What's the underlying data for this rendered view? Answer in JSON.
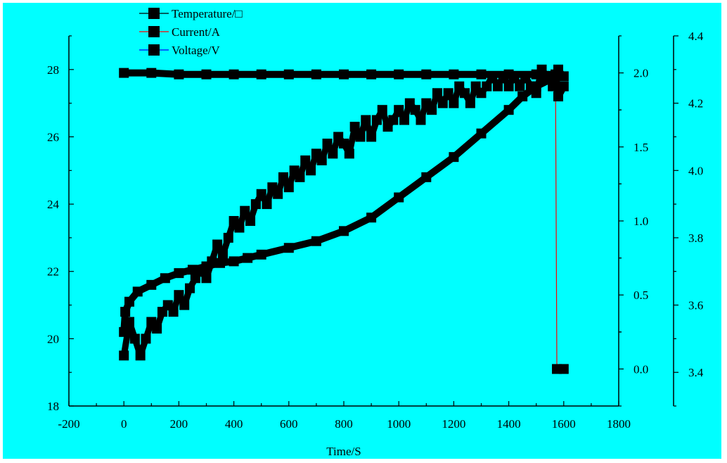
{
  "chart_data": {
    "type": "line",
    "background": "#00FFFF",
    "xlabel": "Time/S",
    "xlim": [
      -200,
      1800
    ],
    "xticks": [
      -200,
      0,
      200,
      400,
      600,
      800,
      1000,
      1200,
      1400,
      1600,
      1800
    ],
    "y_left": {
      "lim": [
        18,
        29
      ],
      "ticks": [
        18,
        20,
        22,
        24,
        26,
        28
      ]
    },
    "y_mid": {
      "lim": [
        -0.25,
        2.25
      ],
      "ticks": [
        0.0,
        0.5,
        1.0,
        1.5,
        2.0
      ]
    },
    "y_right": {
      "lim": [
        3.3,
        4.4
      ],
      "ticks": [
        3.4,
        3.6,
        3.8,
        4.0,
        4.2,
        4.4
      ]
    },
    "legend_position": "top-left",
    "series": [
      {
        "name": "Temperature/□",
        "axis": "left",
        "color": "#000000",
        "marker": "square",
        "points": [
          [
            0,
            19.5
          ],
          [
            20,
            20.5
          ],
          [
            40,
            20.0
          ],
          [
            60,
            19.5
          ],
          [
            80,
            20.0
          ],
          [
            100,
            20.5
          ],
          [
            120,
            20.3
          ],
          [
            140,
            20.8
          ],
          [
            160,
            21.0
          ],
          [
            180,
            20.8
          ],
          [
            200,
            21.3
          ],
          [
            220,
            21.0
          ],
          [
            240,
            21.5
          ],
          [
            260,
            21.8
          ],
          [
            280,
            22.0
          ],
          [
            300,
            21.8
          ],
          [
            320,
            22.3
          ],
          [
            340,
            22.8
          ],
          [
            360,
            22.5
          ],
          [
            380,
            23.0
          ],
          [
            400,
            23.5
          ],
          [
            420,
            23.3
          ],
          [
            440,
            23.8
          ],
          [
            460,
            23.5
          ],
          [
            480,
            24.0
          ],
          [
            500,
            24.3
          ],
          [
            520,
            24.0
          ],
          [
            540,
            24.5
          ],
          [
            560,
            24.3
          ],
          [
            580,
            24.8
          ],
          [
            600,
            24.5
          ],
          [
            620,
            25.0
          ],
          [
            640,
            24.8
          ],
          [
            660,
            25.3
          ],
          [
            680,
            25.0
          ],
          [
            700,
            25.5
          ],
          [
            720,
            25.3
          ],
          [
            740,
            25.8
          ],
          [
            760,
            25.5
          ],
          [
            780,
            26.0
          ],
          [
            800,
            25.8
          ],
          [
            820,
            25.5
          ],
          [
            840,
            26.3
          ],
          [
            860,
            26.0
          ],
          [
            880,
            26.5
          ],
          [
            900,
            26.0
          ],
          [
            920,
            26.5
          ],
          [
            940,
            26.8
          ],
          [
            960,
            26.3
          ],
          [
            980,
            26.5
          ],
          [
            1000,
            26.8
          ],
          [
            1020,
            26.5
          ],
          [
            1040,
            27.0
          ],
          [
            1060,
            26.8
          ],
          [
            1080,
            26.5
          ],
          [
            1100,
            27.0
          ],
          [
            1120,
            26.8
          ],
          [
            1140,
            27.3
          ],
          [
            1160,
            27.0
          ],
          [
            1180,
            27.3
          ],
          [
            1200,
            27.0
          ],
          [
            1220,
            27.5
          ],
          [
            1240,
            27.3
          ],
          [
            1260,
            27.0
          ],
          [
            1280,
            27.5
          ],
          [
            1300,
            27.3
          ],
          [
            1320,
            27.5
          ],
          [
            1340,
            27.8
          ],
          [
            1360,
            27.5
          ],
          [
            1380,
            27.8
          ],
          [
            1400,
            27.5
          ],
          [
            1420,
            27.8
          ],
          [
            1440,
            27.5
          ],
          [
            1460,
            27.8
          ],
          [
            1480,
            27.5
          ],
          [
            1500,
            27.3
          ],
          [
            1520,
            28.0
          ],
          [
            1540,
            27.8
          ],
          [
            1560,
            27.5
          ],
          [
            1580,
            28.0
          ],
          [
            1600,
            27.8
          ]
        ]
      },
      {
        "name": "Current/A",
        "axis": "mid",
        "color": "#FF0000",
        "marker": "square",
        "points": [
          [
            0,
            2.0
          ],
          [
            100,
            2.0
          ],
          [
            200,
            1.99
          ],
          [
            300,
            1.99
          ],
          [
            400,
            1.99
          ],
          [
            500,
            1.99
          ],
          [
            600,
            1.99
          ],
          [
            700,
            1.99
          ],
          [
            800,
            1.99
          ],
          [
            900,
            1.99
          ],
          [
            1000,
            1.99
          ],
          [
            1100,
            1.99
          ],
          [
            1200,
            1.99
          ],
          [
            1300,
            1.99
          ],
          [
            1400,
            1.99
          ],
          [
            1500,
            1.99
          ],
          [
            1570,
            1.99
          ],
          [
            1575,
            0.0
          ],
          [
            1600,
            0.0
          ]
        ]
      },
      {
        "name": "Voltage/V",
        "axis": "right",
        "color": "#0000FF",
        "marker": "square",
        "points": [
          [
            0,
            3.52
          ],
          [
            5,
            3.58
          ],
          [
            20,
            3.61
          ],
          [
            50,
            3.64
          ],
          [
            100,
            3.66
          ],
          [
            150,
            3.68
          ],
          [
            200,
            3.695
          ],
          [
            250,
            3.705
          ],
          [
            300,
            3.715
          ],
          [
            350,
            3.725
          ],
          [
            400,
            3.73
          ],
          [
            450,
            3.74
          ],
          [
            500,
            3.75
          ],
          [
            600,
            3.77
          ],
          [
            700,
            3.79
          ],
          [
            800,
            3.82
          ],
          [
            900,
            3.86
          ],
          [
            1000,
            3.92
          ],
          [
            1100,
            3.98
          ],
          [
            1200,
            4.04
          ],
          [
            1300,
            4.11
          ],
          [
            1400,
            4.18
          ],
          [
            1450,
            4.22
          ],
          [
            1500,
            4.25
          ],
          [
            1550,
            4.27
          ],
          [
            1570,
            4.28
          ],
          [
            1580,
            4.22
          ],
          [
            1600,
            4.25
          ]
        ]
      }
    ]
  }
}
